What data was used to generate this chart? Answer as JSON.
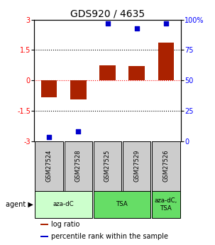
{
  "title": "GDS920 / 4635",
  "samples": [
    "GSM27524",
    "GSM27528",
    "GSM27525",
    "GSM27529",
    "GSM27526"
  ],
  "log_ratios": [
    -0.85,
    -0.95,
    0.75,
    0.7,
    1.85
  ],
  "percentile_ranks": [
    3,
    8,
    97,
    93,
    97
  ],
  "bar_color": "#aa2200",
  "dot_color": "#0000cc",
  "ylim_left": [
    -3,
    3
  ],
  "ylim_right": [
    0,
    100
  ],
  "yticks_left": [
    -3,
    -1.5,
    0,
    1.5,
    3
  ],
  "yticks_right": [
    0,
    25,
    50,
    75,
    100
  ],
  "hlines": [
    -1.5,
    0,
    1.5
  ],
  "hline_colors": [
    "black",
    "red",
    "black"
  ],
  "hline_styles": [
    "dotted",
    "dotted",
    "dotted"
  ],
  "agent_groups": [
    {
      "label": "aza-dC",
      "span": [
        0,
        2
      ],
      "color": "#ccffcc"
    },
    {
      "label": "TSA",
      "span": [
        2,
        4
      ],
      "color": "#66dd66"
    },
    {
      "label": "aza-dC,\nTSA",
      "span": [
        4,
        5
      ],
      "color": "#66dd66"
    }
  ],
  "legend_items": [
    {
      "color": "#aa2200",
      "label": "log ratio"
    },
    {
      "color": "#0000cc",
      "label": "percentile rank within the sample"
    }
  ],
  "background_color": "#ffffff",
  "bar_width": 0.55,
  "gsm_box_color": "#cccccc",
  "title_fontsize": 10,
  "tick_fontsize": 7,
  "legend_fontsize": 7
}
